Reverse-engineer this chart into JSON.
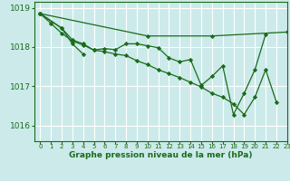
{
  "bg_color": "#cceaea",
  "grid_color": "#ffffff",
  "line_color": "#1a6b1a",
  "xlabel": "Graphe pression niveau de la mer (hPa)",
  "ylabel_ticks": [
    1016,
    1017,
    1018,
    1019
  ],
  "xlim": [
    -0.5,
    23
  ],
  "ylim": [
    1015.6,
    1019.15
  ],
  "hours": [
    0,
    1,
    2,
    3,
    4,
    5,
    6,
    7,
    8,
    9,
    10,
    11,
    12,
    13,
    14,
    15,
    16,
    17,
    18,
    19,
    20,
    21,
    22,
    23
  ],
  "series1_x": [
    0,
    1,
    2,
    3,
    4,
    5,
    6,
    7,
    8,
    9,
    10,
    11,
    12,
    13,
    14,
    15,
    16,
    17,
    18,
    19,
    20,
    21,
    22
  ],
  "series1_y": [
    1018.85,
    1018.6,
    1018.35,
    1018.15,
    1018.05,
    1017.92,
    1017.88,
    1017.82,
    1017.78,
    1017.65,
    1017.55,
    1017.42,
    1017.32,
    1017.22,
    1017.1,
    1016.98,
    1016.82,
    1016.72,
    1016.55,
    1016.28,
    1016.72,
    1017.42,
    1016.6
  ],
  "series2_x": [
    0,
    10,
    16,
    23
  ],
  "series2_y": [
    1018.85,
    1018.28,
    1018.28,
    1018.38
  ],
  "series3_x": [
    0,
    2,
    3,
    4,
    5,
    6,
    7,
    8,
    9,
    10,
    11,
    12,
    13,
    14,
    15,
    16,
    17,
    18,
    19,
    20,
    21
  ],
  "series3_y": [
    1018.85,
    1018.48,
    1018.18,
    1018.08,
    1017.92,
    1017.96,
    1017.93,
    1018.08,
    1018.08,
    1018.03,
    1017.98,
    1017.72,
    1017.62,
    1017.68,
    1017.02,
    1017.25,
    1017.52,
    1016.28,
    1016.82,
    1017.42,
    1018.32
  ],
  "series4_x": [
    0,
    2,
    3,
    4
  ],
  "series4_y": [
    1018.85,
    1018.48,
    1018.08,
    1017.82
  ]
}
